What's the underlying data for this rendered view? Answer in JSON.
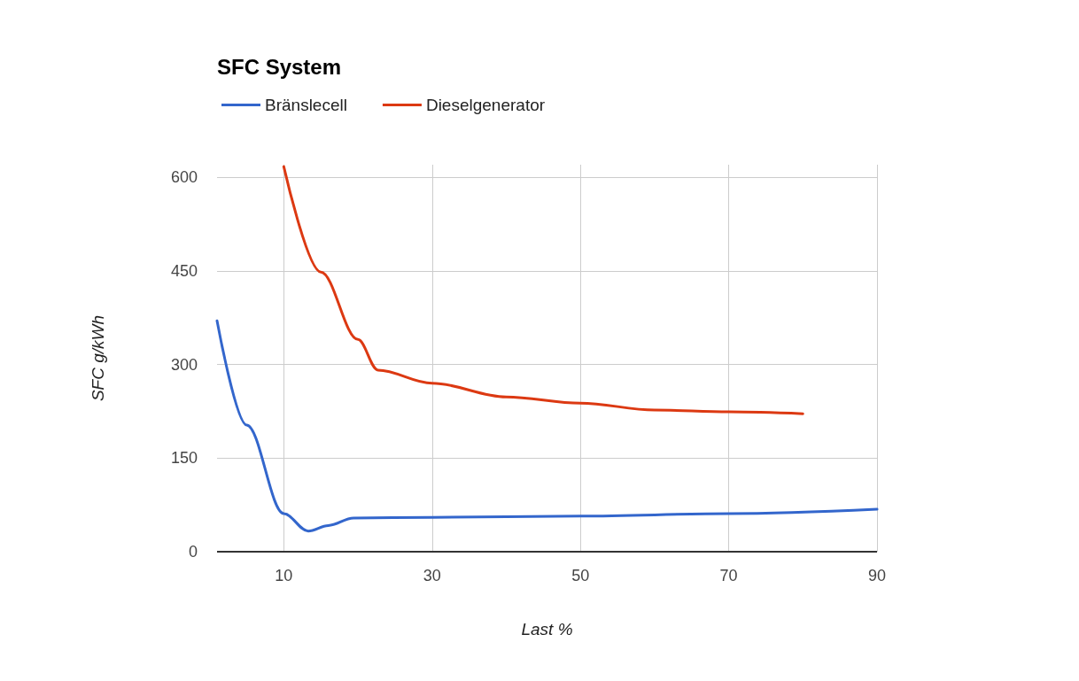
{
  "chart_data": {
    "type": "line",
    "title": "SFC System",
    "xlabel": "Last %",
    "ylabel": "SFC g/kWh",
    "series": [
      {
        "name": "Bränslecell",
        "color": "#3366cc",
        "x": [
          1,
          5,
          10,
          13.3,
          16,
          19.4,
          30,
          50,
          70,
          90
        ],
        "values": [
          370,
          203,
          61,
          33,
          42,
          54,
          55,
          57,
          61,
          68
        ]
      },
      {
        "name": "Dieselgenerator",
        "color": "#dc3912",
        "x": [
          10,
          15,
          20,
          22.7,
          30,
          40,
          50,
          60,
          70,
          80
        ],
        "values": [
          617,
          448,
          340,
          291,
          270,
          248,
          238,
          227,
          224,
          221
        ]
      }
    ],
    "xlim": [
      1,
      90
    ],
    "xticks": [
      10,
      30,
      50,
      70,
      90
    ],
    "ylim": [
      0,
      620
    ],
    "yticks": [
      0,
      150,
      300,
      450,
      600
    ],
    "grid": true,
    "legend": "top left",
    "marker": "none",
    "line_style": "solid"
  }
}
